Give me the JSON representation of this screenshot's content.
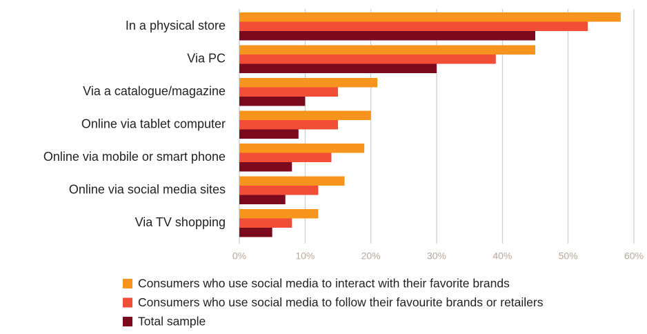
{
  "chart_data": {
    "type": "bar",
    "orientation": "horizontal",
    "title": "",
    "xlabel": "",
    "ylabel": "",
    "categories": [
      "In a physical store",
      "Via PC",
      "Via a catalogue/magazine",
      "Online via tablet computer",
      "Online via mobile or smart phone",
      "Online via social media sites",
      "Via TV shopping"
    ],
    "series": [
      {
        "name": "Consumers who use social media to interact with their favorite brands",
        "color": "#f7941d",
        "values": [
          58,
          45,
          21,
          20,
          19,
          16,
          12
        ]
      },
      {
        "name": "Consumers who use social media to follow their favourite brands or retailers",
        "color": "#f04e37",
        "values": [
          53,
          39,
          15,
          15,
          14,
          12,
          8
        ]
      },
      {
        "name": "Total sample",
        "color": "#7b0a1e",
        "values": [
          45,
          30,
          10,
          9,
          8,
          7,
          5
        ]
      }
    ],
    "xlim": [
      0,
      60
    ],
    "xticks": [
      "0%",
      "10%",
      "20%",
      "30%",
      "40%",
      "50%",
      "60%"
    ],
    "grid": true,
    "legend_position": "bottom-center"
  }
}
